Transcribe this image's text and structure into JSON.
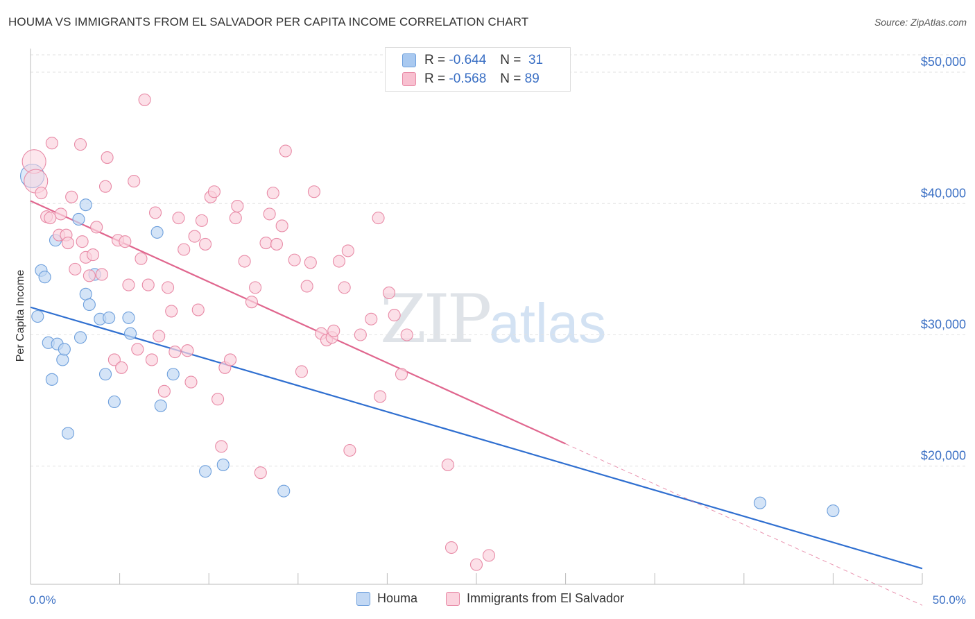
{
  "title": "HOUMA VS IMMIGRANTS FROM EL SALVADOR PER CAPITA INCOME CORRELATION CHART",
  "source": "Source: ZipAtlas.com",
  "watermark": {
    "zip": "ZIP",
    "atlas": "atlas"
  },
  "stats": [
    {
      "r_label": "R =",
      "r_value": "-0.644",
      "n_label": "N =",
      "n_value": "31",
      "color": "#a9c9f0",
      "border": "#6d9fdc"
    },
    {
      "r_label": "R =",
      "r_value": "-0.568",
      "n_label": "N =",
      "n_value": "89",
      "color": "#f8c0d0",
      "border": "#e88aa6"
    }
  ],
  "legend": [
    {
      "label": "Houma",
      "color": "#c2d8f4",
      "border": "#6d9fdc"
    },
    {
      "label": "Immigrants from El Salvador",
      "color": "#fbd3de",
      "border": "#e88aa6"
    }
  ],
  "axes": {
    "ylabel": "Per Capita Income",
    "x_min_label": "0.0%",
    "x_max_label": "50.0%",
    "y_tick_labels": [
      "$20,000",
      "$30,000",
      "$40,000",
      "$50,000"
    ]
  },
  "chart_data": {
    "type": "scatter",
    "title": "HOUMA VS IMMIGRANTS FROM EL SALVADOR PER CAPITA INCOME CORRELATION CHART",
    "xlabel": "",
    "ylabel": "Per Capita Income",
    "xlim": [
      0,
      50
    ],
    "ylim": [
      11000,
      51800
    ],
    "x_unit": "%",
    "y_ticks": [
      20000,
      30000,
      40000,
      50000
    ],
    "grid": true,
    "legend_position": "bottom",
    "series": [
      {
        "name": "Houma",
        "color": "#6d9fdc",
        "fill": "#c2d8f4",
        "trend": {
          "x": [
            0,
            50
          ],
          "y": [
            32100,
            12200
          ],
          "color": "#2f6fd0"
        },
        "points": [
          {
            "x": 0.1,
            "y": 42100,
            "big": true
          },
          {
            "x": 0.4,
            "y": 31400
          },
          {
            "x": 0.6,
            "y": 34900
          },
          {
            "x": 0.8,
            "y": 34400
          },
          {
            "x": 1.0,
            "y": 29400
          },
          {
            "x": 1.2,
            "y": 26600
          },
          {
            "x": 1.4,
            "y": 37200
          },
          {
            "x": 1.5,
            "y": 29300
          },
          {
            "x": 1.8,
            "y": 28100
          },
          {
            "x": 1.9,
            "y": 28900
          },
          {
            "x": 2.1,
            "y": 22500
          },
          {
            "x": 2.7,
            "y": 38800
          },
          {
            "x": 2.8,
            "y": 29800
          },
          {
            "x": 3.1,
            "y": 39900
          },
          {
            "x": 3.1,
            "y": 33100
          },
          {
            "x": 3.3,
            "y": 32300
          },
          {
            "x": 3.6,
            "y": 34600
          },
          {
            "x": 3.9,
            "y": 31200
          },
          {
            "x": 4.2,
            "y": 27000
          },
          {
            "x": 4.4,
            "y": 31300
          },
          {
            "x": 4.7,
            "y": 24900
          },
          {
            "x": 5.5,
            "y": 31300
          },
          {
            "x": 5.6,
            "y": 30100
          },
          {
            "x": 7.1,
            "y": 37800
          },
          {
            "x": 7.3,
            "y": 24600
          },
          {
            "x": 8.0,
            "y": 27000
          },
          {
            "x": 9.8,
            "y": 19600
          },
          {
            "x": 10.8,
            "y": 20100
          },
          {
            "x": 14.2,
            "y": 18100
          },
          {
            "x": 40.9,
            "y": 17200
          },
          {
            "x": 45.0,
            "y": 16600
          }
        ]
      },
      {
        "name": "Immigrants from El Salvador",
        "color": "#e88aa6",
        "fill": "#fbd3de",
        "trend": {
          "x": [
            0,
            30
          ],
          "y": [
            40200,
            21700
          ],
          "color": "#e0668e"
        },
        "trend_extension": {
          "x": [
            30,
            50
          ],
          "y": [
            21700,
            9400
          ]
        },
        "points": [
          {
            "x": 0.2,
            "y": 43200,
            "big": true
          },
          {
            "x": 0.3,
            "y": 41700,
            "big": true
          },
          {
            "x": 0.6,
            "y": 40800
          },
          {
            "x": 0.9,
            "y": 39000
          },
          {
            "x": 1.1,
            "y": 38900
          },
          {
            "x": 1.2,
            "y": 44600
          },
          {
            "x": 1.6,
            "y": 37600
          },
          {
            "x": 1.7,
            "y": 39200
          },
          {
            "x": 2.0,
            "y": 37600
          },
          {
            "x": 2.1,
            "y": 37000
          },
          {
            "x": 2.3,
            "y": 40500
          },
          {
            "x": 2.5,
            "y": 35000
          },
          {
            "x": 2.8,
            "y": 44500
          },
          {
            "x": 2.9,
            "y": 37100
          },
          {
            "x": 3.1,
            "y": 35900
          },
          {
            "x": 3.3,
            "y": 34500
          },
          {
            "x": 3.5,
            "y": 36100
          },
          {
            "x": 3.7,
            "y": 38200
          },
          {
            "x": 4.0,
            "y": 34600
          },
          {
            "x": 4.2,
            "y": 41300
          },
          {
            "x": 4.3,
            "y": 43500
          },
          {
            "x": 4.7,
            "y": 28100
          },
          {
            "x": 4.9,
            "y": 37200
          },
          {
            "x": 5.1,
            "y": 27500
          },
          {
            "x": 5.3,
            "y": 37100
          },
          {
            "x": 5.5,
            "y": 33800
          },
          {
            "x": 5.8,
            "y": 41700
          },
          {
            "x": 6.0,
            "y": 28900
          },
          {
            "x": 6.2,
            "y": 35800
          },
          {
            "x": 6.4,
            "y": 47900
          },
          {
            "x": 6.6,
            "y": 33800
          },
          {
            "x": 6.8,
            "y": 28100
          },
          {
            "x": 7.0,
            "y": 39300
          },
          {
            "x": 7.2,
            "y": 29900
          },
          {
            "x": 7.5,
            "y": 25700
          },
          {
            "x": 7.7,
            "y": 33600
          },
          {
            "x": 7.9,
            "y": 31800
          },
          {
            "x": 8.1,
            "y": 28700
          },
          {
            "x": 8.3,
            "y": 38900
          },
          {
            "x": 8.6,
            "y": 36500
          },
          {
            "x": 8.8,
            "y": 28800
          },
          {
            "x": 9.0,
            "y": 26400
          },
          {
            "x": 9.2,
            "y": 37500
          },
          {
            "x": 9.4,
            "y": 31900
          },
          {
            "x": 9.6,
            "y": 38700
          },
          {
            "x": 9.8,
            "y": 36900
          },
          {
            "x": 10.1,
            "y": 40500
          },
          {
            "x": 10.3,
            "y": 40900
          },
          {
            "x": 10.5,
            "y": 25100
          },
          {
            "x": 10.7,
            "y": 21500
          },
          {
            "x": 10.9,
            "y": 27500
          },
          {
            "x": 11.2,
            "y": 28100
          },
          {
            "x": 11.5,
            "y": 38900
          },
          {
            "x": 11.6,
            "y": 39800
          },
          {
            "x": 12.0,
            "y": 35600
          },
          {
            "x": 12.4,
            "y": 32500
          },
          {
            "x": 12.6,
            "y": 33600
          },
          {
            "x": 12.9,
            "y": 19500
          },
          {
            "x": 13.2,
            "y": 37000
          },
          {
            "x": 13.4,
            "y": 39200
          },
          {
            "x": 13.6,
            "y": 40800
          },
          {
            "x": 13.8,
            "y": 36900
          },
          {
            "x": 14.1,
            "y": 38300
          },
          {
            "x": 14.3,
            "y": 44000
          },
          {
            "x": 14.8,
            "y": 35700
          },
          {
            "x": 15.2,
            "y": 27200
          },
          {
            "x": 15.5,
            "y": 33700
          },
          {
            "x": 15.7,
            "y": 35500
          },
          {
            "x": 15.9,
            "y": 40900
          },
          {
            "x": 16.3,
            "y": 30100
          },
          {
            "x": 16.6,
            "y": 29600
          },
          {
            "x": 16.9,
            "y": 29800
          },
          {
            "x": 17.0,
            "y": 30300
          },
          {
            "x": 17.3,
            "y": 35600
          },
          {
            "x": 17.6,
            "y": 33600
          },
          {
            "x": 17.8,
            "y": 36400
          },
          {
            "x": 17.9,
            "y": 21200
          },
          {
            "x": 18.5,
            "y": 30000
          },
          {
            "x": 19.1,
            "y": 31200
          },
          {
            "x": 19.5,
            "y": 38900
          },
          {
            "x": 19.6,
            "y": 25300
          },
          {
            "x": 20.1,
            "y": 33200
          },
          {
            "x": 20.4,
            "y": 31500
          },
          {
            "x": 20.8,
            "y": 27000
          },
          {
            "x": 21.1,
            "y": 30000
          },
          {
            "x": 23.4,
            "y": 20100
          },
          {
            "x": 23.6,
            "y": 13800
          },
          {
            "x": 25.0,
            "y": 12500
          },
          {
            "x": 25.7,
            "y": 13200
          }
        ]
      }
    ]
  }
}
